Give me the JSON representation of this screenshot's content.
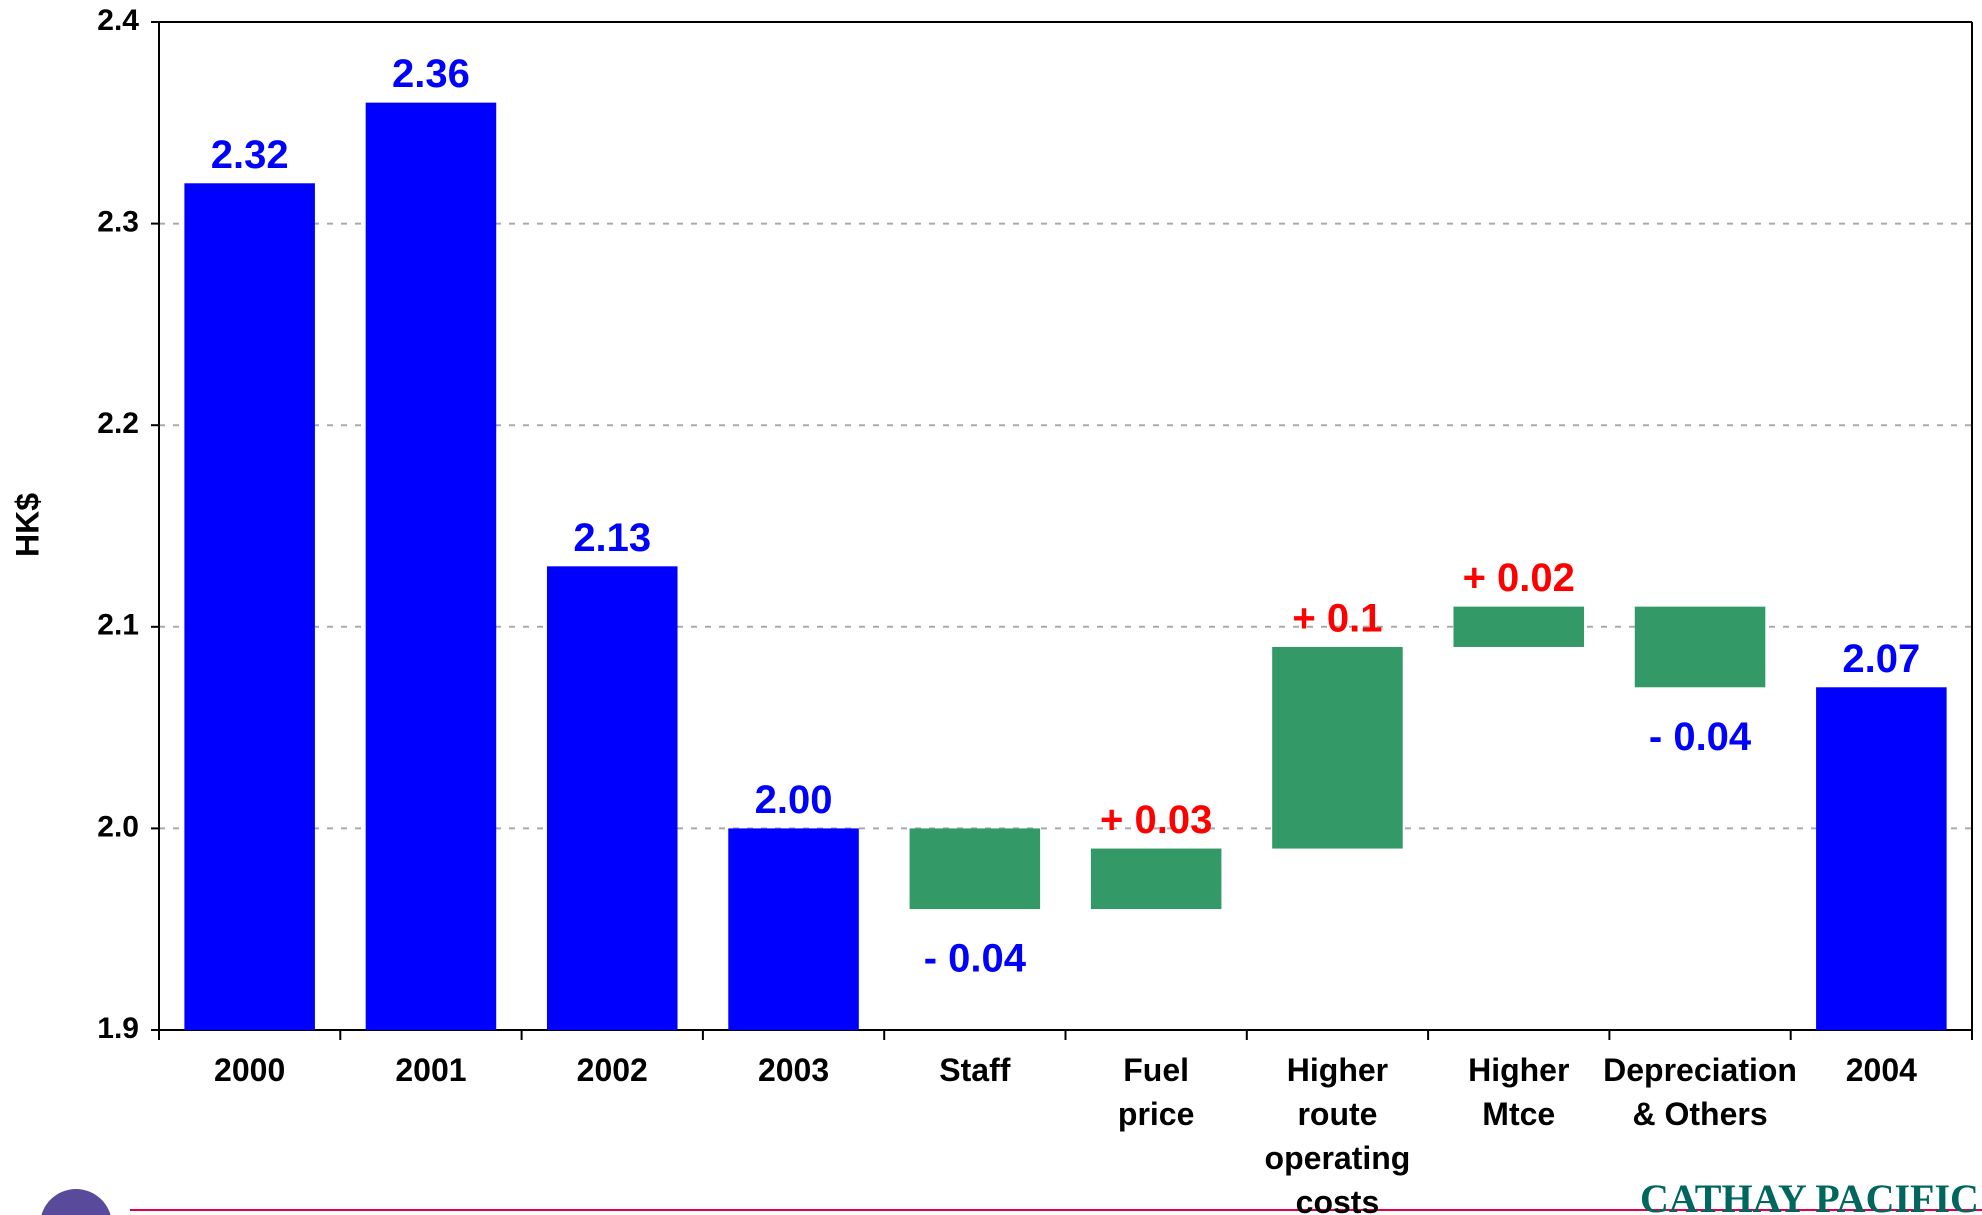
{
  "chart_data": {
    "type": "waterfall",
    "y_label": "HK$",
    "categories": [
      "2000",
      "2001",
      "2002",
      "2003",
      "Staff",
      "Fuel\nprice",
      "Higher\nroute\noperating\ncosts",
      "Higher\nMtce",
      "Depreciation\n& Others",
      "2004"
    ],
    "values": [
      2.32,
      2.36,
      2.13,
      2.0,
      -0.04,
      0.03,
      0.1,
      0.02,
      -0.04,
      2.07
    ],
    "value_labels": [
      "2.32",
      "2.36",
      "2.13",
      "2.00",
      "- 0.04",
      "+ 0.03",
      "+ 0.1",
      "+ 0.02",
      "- 0.04",
      "2.07"
    ],
    "is_total": [
      true,
      true,
      true,
      true,
      false,
      false,
      false,
      false,
      false,
      true
    ],
    "total_color": "#0000ff",
    "delta_color": "#339966",
    "increase_label_color": "#ff0000",
    "decrease_label_color": "#0000ff",
    "ylim": [
      1.9,
      2.4
    ],
    "yticks": [
      1.9,
      {
        "value": 2,
        "label": "2.0"
      },
      2.1,
      2.2,
      2.3,
      2.4
    ],
    "grid": true
  },
  "logo_text": "CATHAY PACIFIC"
}
